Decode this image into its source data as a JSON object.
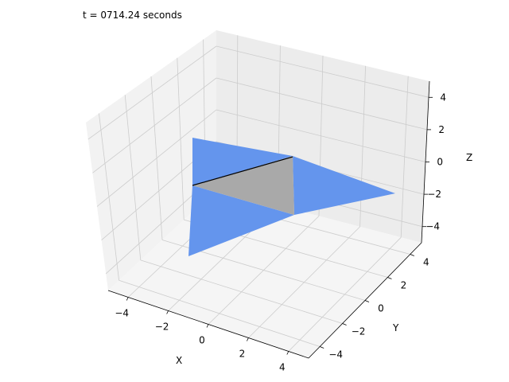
{
  "chart_data": {
    "type": "3d-surface",
    "title": "t = 0714.24 seconds",
    "xlabel": "X",
    "ylabel": "Y",
    "zlabel": "Z",
    "xlim": [
      -5,
      5
    ],
    "ylim": [
      -5,
      5
    ],
    "zlim": [
      -5,
      5
    ],
    "xticks": [
      -4,
      -2,
      0,
      2,
      4
    ],
    "yticks": [
      -4,
      -2,
      0,
      2,
      4
    ],
    "zticks": [
      -4,
      -2,
      0,
      2,
      4
    ],
    "xtick_labels": [
      "−4",
      "−2",
      "0",
      "2",
      "4"
    ],
    "ytick_labels": [
      "−4",
      "−2",
      "0",
      "2",
      "4"
    ],
    "ztick_labels": [
      "−4",
      "−2",
      "0",
      "2",
      "4"
    ],
    "grid": true,
    "pane_color": "#f2f2f2",
    "grid_color": "#cccccc",
    "wing_color": "#6495ed",
    "body_color": "#a9a9a9",
    "edge_color": "#000000"
  }
}
